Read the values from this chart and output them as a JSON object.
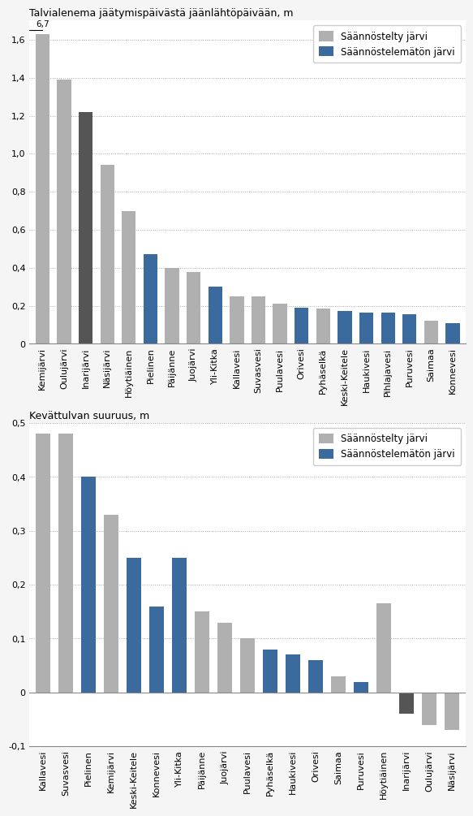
{
  "chart1": {
    "title": "Talvialenema jäätymispäivästä jäänlähtöpäivään, m",
    "ylim": [
      0,
      1.7
    ],
    "yticks": [
      0,
      0.2,
      0.4,
      0.6,
      0.8,
      1.0,
      1.2,
      1.4,
      1.6
    ],
    "annotation": "6,7",
    "categories": [
      "Kemijärvi",
      "Oulujärvi",
      "Inarijärvi",
      "Näsijärvi",
      "Höytiäinen",
      "Pielinen",
      "Päijänne",
      "Juojärvi",
      "Yli-Kitka",
      "Kallavesi",
      "Suvasvesi",
      "Puulavesi",
      "Orivesi",
      "Pyhäselkä",
      "Keski-Keitele",
      "Haukivesi",
      "Pihlajavesi",
      "Puruvesi",
      "Saimaa",
      "Konnevesi"
    ],
    "values": [
      1.63,
      1.39,
      1.22,
      0.94,
      0.7,
      0.47,
      0.4,
      0.38,
      0.3,
      0.25,
      0.25,
      0.21,
      0.19,
      0.185,
      0.175,
      0.165,
      0.165,
      0.155,
      0.12,
      0.11
    ],
    "colors": [
      "#b0b0b0",
      "#b0b0b0",
      "#3a6a9e",
      "#b0b0b0",
      "#b0b0b0",
      "#3a6a9e",
      "#b0b0b0",
      "#b0b0b0",
      "#3a6a9e",
      "#b0b0b0",
      "#b0b0b0",
      "#b0b0b0",
      "#3a6a9e",
      "#b0b0b0",
      "#3a6a9e",
      "#3a6a9e",
      "#3a6a9e",
      "#3a6a9e",
      "#b0b0b0",
      "#3a6a9e"
    ],
    "inarijärvi_color": "#555555",
    "legend_gray": "Säännöstelty järvi",
    "legend_blue": "Säännöstelemätön järvi"
  },
  "chart2": {
    "title": "Kevättulvan suuruus, m",
    "ylim": [
      -0.1,
      0.5
    ],
    "yticks": [
      -0.1,
      0,
      0.1,
      0.2,
      0.3,
      0.4,
      0.5
    ],
    "categories": [
      "Kallavesi",
      "Suvasvesi",
      "Pielinen",
      "Kemijärvi",
      "Keski-Keitele",
      "Konnevesi",
      "Yli-Kitka",
      "Päijänne",
      "Juojärvi",
      "Puulavesi",
      "Pyhäselkä",
      "Haukivesi",
      "Orivesi",
      "Saimaa",
      "Puruvesi",
      "Höytiäinen",
      "Inarijärvi",
      "Oulujärvi",
      "Näsijärvi"
    ],
    "values": [
      0.48,
      0.48,
      0.4,
      0.33,
      0.25,
      0.16,
      0.25,
      0.15,
      0.13,
      0.1,
      0.08,
      0.07,
      0.06,
      0.03,
      0.02,
      0.165,
      -0.04,
      -0.06,
      -0.07
    ],
    "colors": [
      "#b0b0b0",
      "#b0b0b0",
      "#3a6a9e",
      "#b0b0b0",
      "#3a6a9e",
      "#3a6a9e",
      "#3a6a9e",
      "#b0b0b0",
      "#b0b0b0",
      "#b0b0b0",
      "#3a6a9e",
      "#3a6a9e",
      "#3a6a9e",
      "#b0b0b0",
      "#3a6a9e",
      "#b0b0b0",
      "#555555",
      "#b0b0b0",
      "#b0b0b0"
    ],
    "legend_gray": "Säännöstelty järvi",
    "legend_blue": "Säännöstelemätön järvi"
  },
  "figure_bg": "#f0f0f0",
  "bar_bg": "#ffffff",
  "grid_color": "#aaaaaa",
  "font_size_title": 9,
  "font_size_tick": 8,
  "font_size_legend": 8.5
}
